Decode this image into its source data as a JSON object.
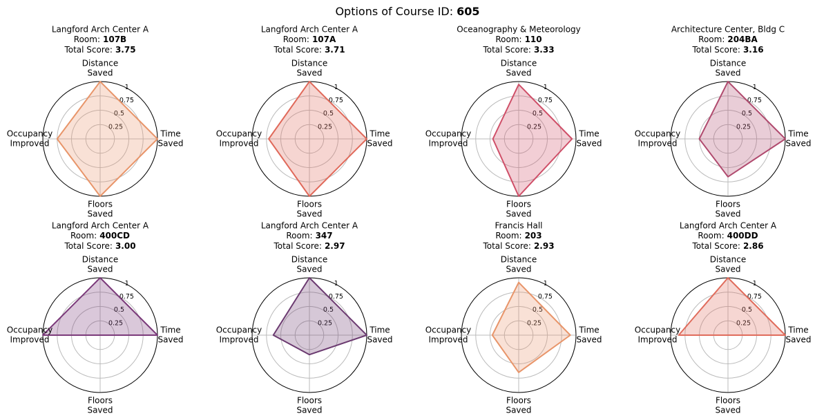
{
  "title": "Options of Course ID:",
  "course_id": "605",
  "chart_data": [
    {
      "type": "radar",
      "title": "Langford Arch Center A",
      "room_label": "Room:",
      "room": "107B",
      "score_label": "Total Score:",
      "total_score": 3.75,
      "categories": [
        [
          "Distance",
          "Saved"
        ],
        [
          "Time",
          "Saved"
        ],
        [
          "Floors",
          "Saved"
        ],
        [
          "Occupancy",
          "Improved"
        ]
      ],
      "values": [
        1,
        1,
        1,
        0.75
      ],
      "color": "#e8956a",
      "rlim": [
        0,
        1
      ],
      "rticks": [
        0.25,
        0.5,
        0.75,
        1
      ]
    },
    {
      "type": "radar",
      "title": "Langford Arch Center A",
      "room_label": "Room:",
      "room": "107A",
      "score_label": "Total Score:",
      "total_score": 3.71,
      "categories": [
        [
          "Distance",
          "Saved"
        ],
        [
          "Time",
          "Saved"
        ],
        [
          "Floors",
          "Saved"
        ],
        [
          "Occupancy",
          "Improved"
        ]
      ],
      "values": [
        1,
        1,
        1,
        0.71
      ],
      "color": "#e0695a",
      "rlim": [
        0,
        1
      ],
      "rticks": [
        0.25,
        0.5,
        0.75,
        1
      ]
    },
    {
      "type": "radar",
      "title": "Oceanography & Meteorology",
      "room_label": "Room:",
      "room": "110",
      "score_label": "Total Score:",
      "total_score": 3.33,
      "categories": [
        [
          "Distance",
          "Saved"
        ],
        [
          "Time",
          "Saved"
        ],
        [
          "Floors",
          "Saved"
        ],
        [
          "Occupancy",
          "Improved"
        ]
      ],
      "values": [
        0.95,
        0.93,
        1,
        0.45
      ],
      "color": "#cf4f68",
      "rlim": [
        0,
        1
      ],
      "rticks": [
        0.25,
        0.5,
        0.75,
        1
      ]
    },
    {
      "type": "radar",
      "title": "Architecture Center, Bldg C",
      "room_label": "Room:",
      "room": "204BA",
      "score_label": "Total Score:",
      "total_score": 3.16,
      "categories": [
        [
          "Distance",
          "Saved"
        ],
        [
          "Time",
          "Saved"
        ],
        [
          "Floors",
          "Saved"
        ],
        [
          "Occupancy",
          "Improved"
        ]
      ],
      "values": [
        1,
        1,
        0.66,
        0.5
      ],
      "color": "#b04a6e",
      "rlim": [
        0,
        1
      ],
      "rticks": [
        0.25,
        0.5,
        0.75,
        1
      ]
    },
    {
      "type": "radar",
      "title": "Langford Arch Center A",
      "room_label": "Room:",
      "room": "400CD",
      "score_label": "Total Score:",
      "total_score": 3,
      "total_score_label": "3.00",
      "categories": [
        [
          "Distance",
          "Saved"
        ],
        [
          "Time",
          "Saved"
        ],
        [
          "Floors",
          "Saved"
        ],
        [
          "Occupancy",
          "Improved"
        ]
      ],
      "values": [
        1,
        1,
        0,
        1
      ],
      "color": "#7b3a7a",
      "rlim": [
        0,
        1
      ],
      "rticks": [
        0.25,
        0.5,
        0.75,
        1
      ]
    },
    {
      "type": "radar",
      "title": "Langford Arch Center A",
      "room_label": "Room:",
      "room": "347",
      "score_label": "Total Score:",
      "total_score": 2.97,
      "categories": [
        [
          "Distance",
          "Saved"
        ],
        [
          "Time",
          "Saved"
        ],
        [
          "Floors",
          "Saved"
        ],
        [
          "Occupancy",
          "Improved"
        ]
      ],
      "values": [
        1,
        1,
        0.34,
        0.63
      ],
      "color": "#6b3a70",
      "rlim": [
        0,
        1
      ],
      "rticks": [
        0.25,
        0.5,
        0.75,
        1
      ]
    },
    {
      "type": "radar",
      "title": "Francis Hall",
      "room_label": "Room:",
      "room": "203",
      "score_label": "Total Score:",
      "total_score": 2.93,
      "categories": [
        [
          "Distance",
          "Saved"
        ],
        [
          "Time",
          "Saved"
        ],
        [
          "Floors",
          "Saved"
        ],
        [
          "Occupancy",
          "Improved"
        ]
      ],
      "values": [
        0.92,
        0.9,
        0.65,
        0.46
      ],
      "color": "#e8956a",
      "rlim": [
        0,
        1
      ],
      "rticks": [
        0.25,
        0.5,
        0.75,
        1
      ]
    },
    {
      "type": "radar",
      "title": "Langford Arch Center A",
      "room_label": "Room:",
      "room": "400DD",
      "score_label": "Total Score:",
      "total_score": 2.86,
      "categories": [
        [
          "Distance",
          "Saved"
        ],
        [
          "Time",
          "Saved"
        ],
        [
          "Floors",
          "Saved"
        ],
        [
          "Occupancy",
          "Improved"
        ]
      ],
      "values": [
        1,
        1,
        0,
        0.86
      ],
      "color": "#e06c5c",
      "rlim": [
        0,
        1
      ],
      "rticks": [
        0.25,
        0.5,
        0.75,
        1
      ]
    }
  ]
}
